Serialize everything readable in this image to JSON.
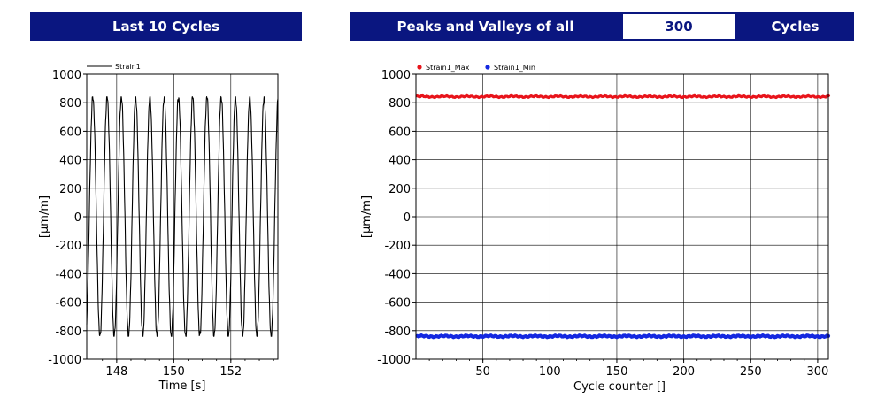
{
  "header": {
    "left_title": "Last 10 Cycles",
    "mid_title": "Peaks and Valleys of all",
    "cycle_count": "300",
    "right_title": "Cycles"
  },
  "colors": {
    "banner": "#0a1680",
    "strain1": "#000000",
    "strain1_max": "#e8141b",
    "strain1_min": "#1428e0"
  },
  "chart_data": [
    {
      "type": "line",
      "title": "Last 10 Cycles",
      "xlabel": "Time [s]",
      "ylabel": "[µm/m]",
      "xlim": [
        146.95,
        153.65
      ],
      "ylim": [
        -1000,
        1000
      ],
      "xticks": [
        148,
        150,
        152
      ],
      "yticks": [
        1000,
        800,
        600,
        400,
        200,
        0,
        -200,
        -400,
        -600,
        -800,
        -1000
      ],
      "grid": true,
      "legend": "top-left",
      "series": [
        {
          "name": "Strain1",
          "frequency_hz": 2,
          "amplitude": 840,
          "x_start": 146.95,
          "x_end": 153.65
        }
      ]
    },
    {
      "type": "scatter",
      "xlabel": "Cycle counter []",
      "ylabel": "[µm/m]",
      "xlim": [
        0,
        308
      ],
      "ylim": [
        -1000,
        1000
      ],
      "xticks": [
        50,
        100,
        150,
        200,
        250,
        300
      ],
      "yticks": [
        1000,
        800,
        600,
        400,
        200,
        0,
        -200,
        -400,
        -600,
        -800,
        -1000
      ],
      "grid": true,
      "legend": "top-left",
      "series": [
        {
          "name": "Strain1_Max",
          "approx_value": 845,
          "x_range": [
            1,
            308
          ]
        },
        {
          "name": "Strain1_Min",
          "approx_value": -840,
          "x_range": [
            1,
            308
          ]
        }
      ]
    }
  ]
}
